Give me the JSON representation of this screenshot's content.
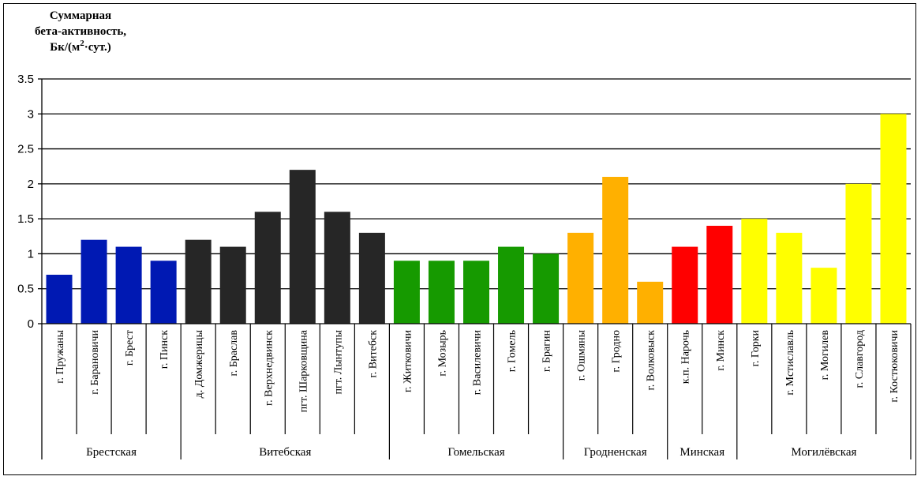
{
  "chart_data": {
    "type": "bar",
    "title": "",
    "ylabel_lines": [
      "Суммарная",
      "бета-активность,",
      "Бк/(м",
      "2",
      "·сут.)"
    ],
    "xlabel": "",
    "ylim": [
      0,
      3.5
    ],
    "yticks": [
      "0",
      "0.5",
      "1",
      "1.5",
      "2",
      "2.5",
      "3",
      "3.5"
    ],
    "grid": true,
    "categories": [
      "г. Пружаны",
      "г. Барановичи",
      "г. Брест",
      "г. Пинск",
      "д. Домжерицы",
      "г. Браслав",
      "г. Верхнедвинск",
      "пгт. Шарковщина",
      "пгт. Лынтупы",
      "г. Витебск",
      "г. Житковичи",
      "г. Мозырь",
      "г. Василевичи",
      "г. Гомель",
      "г. Брагин",
      "г. Ошмяны",
      "г. Гродно",
      "г. Волковыск",
      "к.п. Нарочь",
      "г. Минск",
      "г. Горки",
      "г. Мстиславль",
      "г. Могилев",
      "г. Славгород",
      "г. Костюковичи"
    ],
    "values": [
      0.7,
      1.2,
      1.1,
      0.9,
      1.2,
      1.1,
      1.6,
      2.2,
      1.6,
      1.3,
      0.9,
      0.9,
      0.9,
      1.1,
      1.0,
      1.3,
      2.1,
      0.6,
      1.1,
      1.4,
      1.5,
      1.3,
      0.8,
      2.0,
      3.0
    ],
    "groups": [
      {
        "name": "Брестская",
        "count": 4,
        "color": "#0019B3"
      },
      {
        "name": "Витебская",
        "count": 6,
        "color": "#262626"
      },
      {
        "name": "Гомельская",
        "count": 5,
        "color": "#169A00"
      },
      {
        "name": "Гродненская",
        "count": 3,
        "color": "#FFB000"
      },
      {
        "name": "Минская",
        "count": 2,
        "color": "#FF0000"
      },
      {
        "name": "Могилёвская",
        "count": 5,
        "color": "#FFFF00"
      }
    ]
  }
}
